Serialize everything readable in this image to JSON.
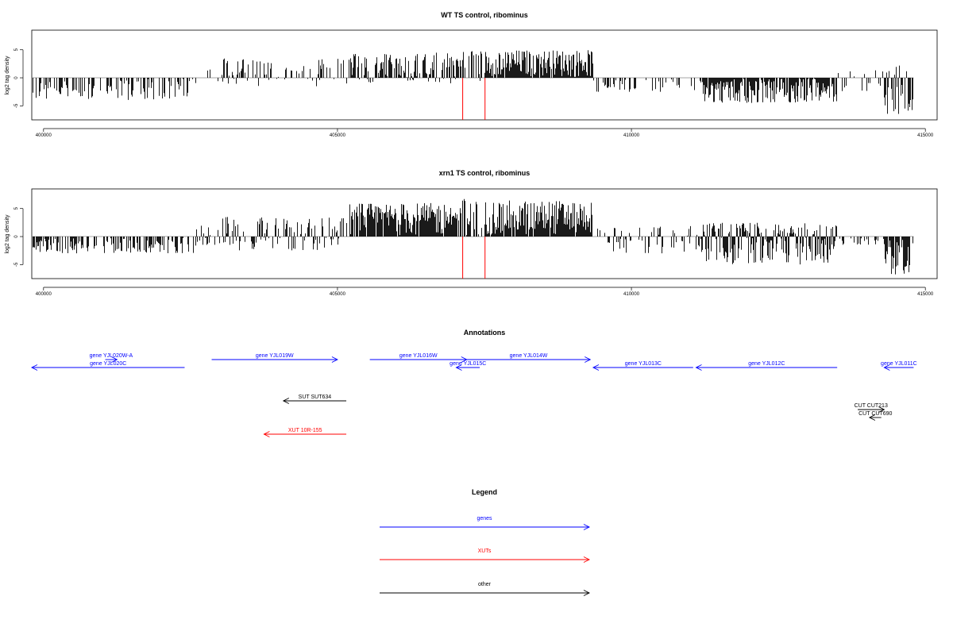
{
  "colors": {
    "gene": "#0000ff",
    "xut": "#ff0000",
    "other": "#000000",
    "peak": "#ff0000",
    "baseline": "#888888"
  },
  "chart_data": [
    {
      "type": "bar",
      "title": "WT TS control, ribominus",
      "ylabel": "log2 tag density",
      "xlim": [
        399800,
        415200
      ],
      "ylim": [
        -7.5,
        8.5
      ],
      "xticks": [
        400000,
        405000,
        410000,
        415000
      ],
      "yticks": [
        -5,
        0,
        5
      ],
      "peaks": [
        {
          "x": 407130,
          "y": -7.5
        },
        {
          "x": 407510,
          "y": -7.5
        }
      ],
      "regions": [
        {
          "start": 399800,
          "end": 402600,
          "min": -4,
          "max": 0.3,
          "density": 0.45
        },
        {
          "start": 402600,
          "end": 403000,
          "min": -1.5,
          "max": 1.5,
          "density": 0.25
        },
        {
          "start": 403000,
          "end": 405200,
          "min": -1.5,
          "max": 3.5,
          "density": 0.45
        },
        {
          "start": 405200,
          "end": 407100,
          "min": -1,
          "max": 4.5,
          "density": 0.7
        },
        {
          "start": 407100,
          "end": 407500,
          "min": -1,
          "max": 5,
          "density": 0.5
        },
        {
          "start": 407500,
          "end": 409350,
          "min": 0,
          "max": 5,
          "density": 0.95
        },
        {
          "start": 409350,
          "end": 411200,
          "min": -2.5,
          "max": 0.5,
          "density": 0.35
        },
        {
          "start": 411200,
          "end": 413500,
          "min": -4.5,
          "max": 0,
          "density": 0.9
        },
        {
          "start": 413500,
          "end": 414300,
          "min": -2.5,
          "max": 1.5,
          "density": 0.3
        },
        {
          "start": 414300,
          "end": 414800,
          "min": -6.5,
          "max": 2.5,
          "density": 0.7
        }
      ]
    },
    {
      "type": "bar",
      "title": "xrn1 TS control, ribominus",
      "ylabel": "log2 tag density",
      "xlim": [
        399800,
        415200
      ],
      "ylim": [
        -7.5,
        8.5
      ],
      "xticks": [
        400000,
        405000,
        410000,
        415000
      ],
      "yticks": [
        -5,
        0,
        5
      ],
      "peaks": [
        {
          "x": 407130,
          "y": -7.5
        },
        {
          "x": 407510,
          "y": -7.5
        }
      ],
      "regions": [
        {
          "start": 399800,
          "end": 402600,
          "min": -3,
          "max": 0.3,
          "density": 0.55
        },
        {
          "start": 402600,
          "end": 403000,
          "min": -1.5,
          "max": 2,
          "density": 0.4
        },
        {
          "start": 403000,
          "end": 405200,
          "min": -2.5,
          "max": 3.5,
          "density": 0.6
        },
        {
          "start": 405200,
          "end": 407100,
          "min": 0,
          "max": 6,
          "density": 0.95
        },
        {
          "start": 407100,
          "end": 407500,
          "min": 0,
          "max": 8,
          "density": 0.6
        },
        {
          "start": 407500,
          "end": 409350,
          "min": 0,
          "max": 6.5,
          "density": 0.95
        },
        {
          "start": 409350,
          "end": 411200,
          "min": -3,
          "max": 2,
          "density": 0.45
        },
        {
          "start": 411200,
          "end": 413500,
          "min": -5,
          "max": 2.5,
          "density": 0.95
        },
        {
          "start": 413500,
          "end": 414300,
          "min": -1.5,
          "max": 0.5,
          "density": 0.3
        },
        {
          "start": 414300,
          "end": 414800,
          "min": -7,
          "max": 0,
          "density": 0.85
        }
      ]
    }
  ],
  "annotations": {
    "title": "Annotations",
    "features": [
      {
        "label": "gene YJL020W-A",
        "kind": "gene",
        "start": 401050,
        "end": 401250,
        "strand": "+",
        "row": 0
      },
      {
        "label": "gene YJL020C",
        "kind": "gene",
        "start": 399800,
        "end": 402400,
        "strand": "-",
        "row": 1
      },
      {
        "label": "gene YJL019W",
        "kind": "gene",
        "start": 402860,
        "end": 405000,
        "strand": "+",
        "row": 0
      },
      {
        "label": "gene YJL016W",
        "kind": "gene",
        "start": 405550,
        "end": 407200,
        "strand": "+",
        "row": 0
      },
      {
        "label": "gene YJL015C",
        "kind": "gene",
        "start": 407020,
        "end": 407420,
        "strand": "-",
        "row": 1
      },
      {
        "label": "gene YJL014W",
        "kind": "gene",
        "start": 407200,
        "end": 409300,
        "strand": "+",
        "row": 0
      },
      {
        "label": "gene YJL013C",
        "kind": "gene",
        "start": 409350,
        "end": 411050,
        "strand": "-",
        "row": 1
      },
      {
        "label": "gene YJL012C",
        "kind": "gene",
        "start": 411100,
        "end": 413500,
        "strand": "-",
        "row": 1
      },
      {
        "label": "gene YJL011C",
        "kind": "gene",
        "start": 414300,
        "end": 414800,
        "strand": "-",
        "row": 1
      },
      {
        "label": "SUT SUT634",
        "kind": "other",
        "start": 404080,
        "end": 405150,
        "strand": "-",
        "row": 2
      },
      {
        "label": "CUT CUT213",
        "kind": "other",
        "start": 413850,
        "end": 414300,
        "strand": "+",
        "row": 3
      },
      {
        "label": "CUT CUT690",
        "kind": "other",
        "start": 414050,
        "end": 414250,
        "strand": "-",
        "row": 4
      },
      {
        "label": "XUT 10R-155",
        "kind": "xut",
        "start": 403750,
        "end": 405150,
        "strand": "-",
        "row": 5
      }
    ]
  },
  "legend": {
    "title": "Legend",
    "entries": [
      {
        "label": "genes",
        "kind": "gene"
      },
      {
        "label": "XUTs",
        "kind": "xut"
      },
      {
        "label": "other",
        "kind": "other"
      }
    ]
  }
}
